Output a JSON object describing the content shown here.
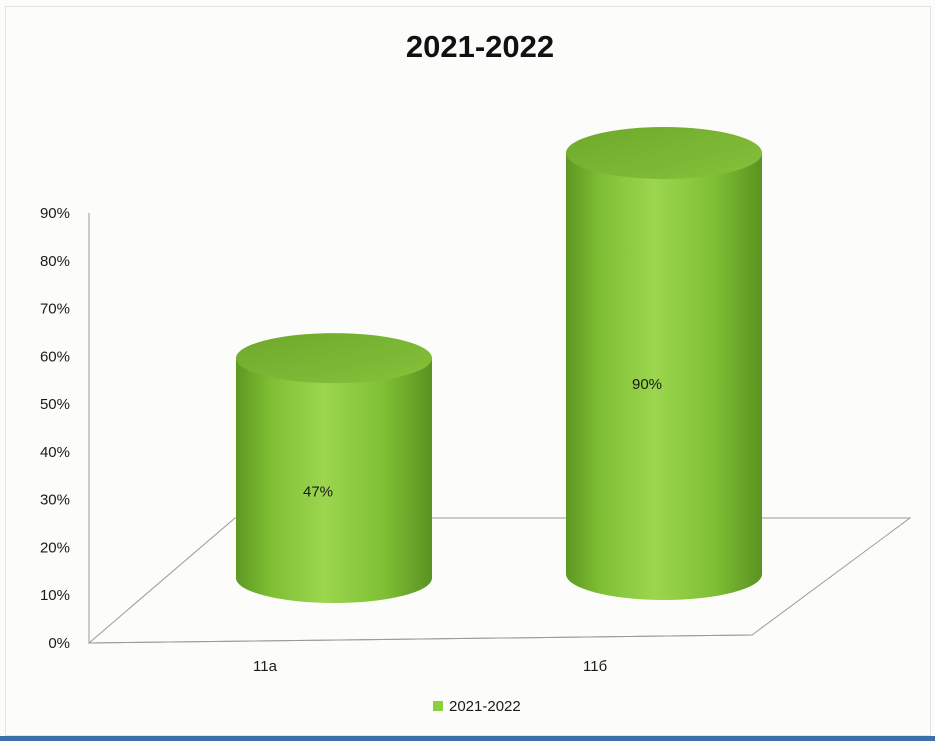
{
  "chart_data": {
    "type": "bar",
    "style": "3d-cylinder",
    "title": "2021-2022",
    "categories": [
      "11a",
      "11б"
    ],
    "series": [
      {
        "name": "2021-2022",
        "values": [
          0.47,
          0.9
        ],
        "data_labels": [
          "47%",
          "90%"
        ]
      }
    ],
    "y_ticks": [
      "0%",
      "10%",
      "20%",
      "30%",
      "40%",
      "50%",
      "60%",
      "70%",
      "80%",
      "90%"
    ],
    "ylim": [
      0,
      0.9
    ],
    "xlabel": "",
    "ylabel": "",
    "grid": false,
    "legend_position": "bottom",
    "colors": {
      "bar": "#8ccf3c",
      "bar_dark": "#5f9a22",
      "bar_top": "#79b52f"
    }
  }
}
